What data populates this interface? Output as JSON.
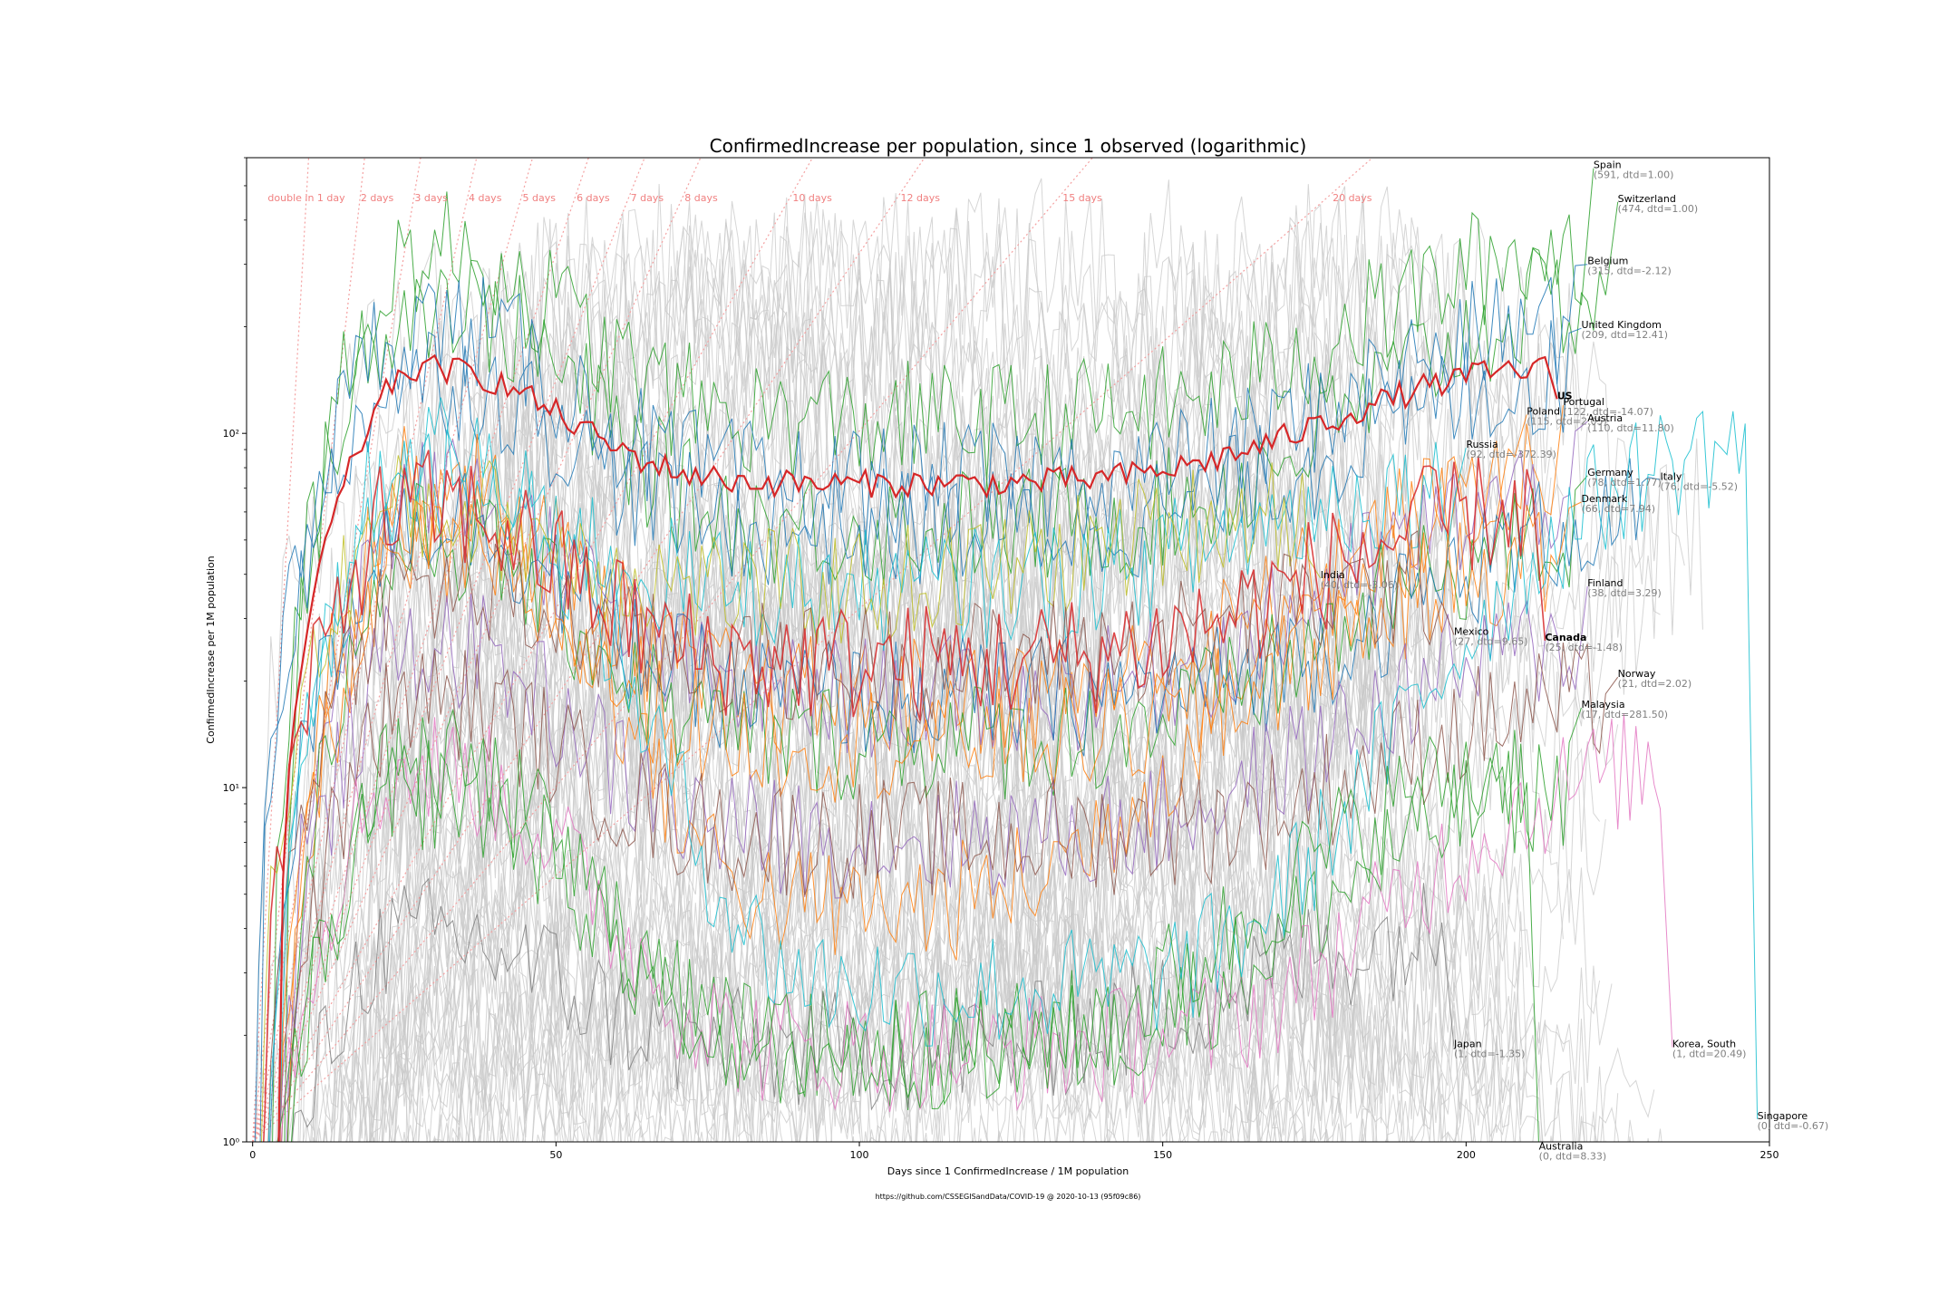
{
  "chart_data": {
    "type": "line",
    "title": "ConfirmedIncrease per population, since 1 observed (logarithmic)",
    "xlabel": "Days since 1 ConfirmedIncrease / 1M population",
    "ylabel": "ConfirmedIncrease per 1M population",
    "footer": "https://github.com/CSSEGISandData/COVID-19 @ 2020-10-13 (95f09c86)",
    "xlim": [
      -1,
      250
    ],
    "ylim": [
      1,
      600
    ],
    "yscale": "log",
    "x_ticks": [
      {
        "v": 0,
        "label": "0"
      },
      {
        "v": 50,
        "label": "50"
      },
      {
        "v": 100,
        "label": "100"
      },
      {
        "v": 150,
        "label": "150"
      },
      {
        "v": 200,
        "label": "200"
      },
      {
        "v": 250,
        "label": "250"
      }
    ],
    "y_ticks": [
      {
        "v": 1,
        "label": "10⁰"
      },
      {
        "v": 10,
        "label": "10¹"
      },
      {
        "v": 100,
        "label": "10²"
      }
    ],
    "doubling_lines": [
      {
        "days": 1,
        "label": "double in 1 day"
      },
      {
        "days": 2,
        "label": "2 days"
      },
      {
        "days": 3,
        "label": "3 days"
      },
      {
        "days": 4,
        "label": "4 days"
      },
      {
        "days": 5,
        "label": "5 days"
      },
      {
        "days": 6,
        "label": "6 days"
      },
      {
        "days": 7,
        "label": "7 days"
      },
      {
        "days": 8,
        "label": "8 days"
      },
      {
        "days": 10,
        "label": "10 days"
      },
      {
        "days": 12,
        "label": "12 days"
      },
      {
        "days": 15,
        "label": "15 days"
      },
      {
        "days": 20,
        "label": "20 days"
      }
    ],
    "highlighted": [
      {
        "name": "US",
        "label": "US",
        "value_text": "",
        "bold": true,
        "color": "#d62728",
        "width": 2.2,
        "lx": 215,
        "ly": 125,
        "base": 80,
        "peak": 200
      },
      {
        "name": "Canada",
        "label": "Canada",
        "value_text": "(25, dtd=-1.48)",
        "bold": true,
        "color": "#d62728",
        "width": 1.6,
        "lx": 213,
        "ly": 26,
        "base": 25,
        "peak": 90
      },
      {
        "name": "Spain",
        "label": "Spain",
        "value_text": "(591, dtd=1.00)",
        "bold": false,
        "color": "#2ca02c",
        "width": 1.0,
        "lx": 221,
        "ly": 560,
        "base": 120,
        "peak": 500
      },
      {
        "name": "Switzerland",
        "label": "Switzerland",
        "value_text": "(474, dtd=1.00)",
        "bold": false,
        "color": "#2ca02c",
        "width": 1.0,
        "lx": 225,
        "ly": 450,
        "base": 60,
        "peak": 400
      },
      {
        "name": "Belgium",
        "label": "Belgium",
        "value_text": "(315, dtd=-2.12)",
        "bold": false,
        "color": "#1f77b4",
        "width": 1.0,
        "lx": 220,
        "ly": 300,
        "base": 80,
        "peak": 300
      },
      {
        "name": "United Kingdom",
        "label": "United Kingdom",
        "value_text": "(209, dtd=12.41)",
        "bold": false,
        "color": "#1f77b4",
        "width": 1.0,
        "lx": 219,
        "ly": 198,
        "base": 60,
        "peak": 210
      },
      {
        "name": "Portugal",
        "label": "Portugal",
        "value_text": "(122, dtd=-14.07)",
        "bold": false,
        "color": "#ff7f0e",
        "width": 1.0,
        "lx": 216,
        "ly": 120,
        "base": 20,
        "peak": 120
      },
      {
        "name": "Poland",
        "label": "Poland",
        "value_text": "(115, dtd=2.05)",
        "bold": false,
        "color": "#ff7f0e",
        "width": 1.0,
        "lx": 210,
        "ly": 113,
        "base": 5,
        "peak": 115
      },
      {
        "name": "Austria",
        "label": "Austria",
        "value_text": "(110, dtd=11.80)",
        "bold": false,
        "color": "#9467bd",
        "width": 1.0,
        "lx": 220,
        "ly": 108,
        "base": 20,
        "peak": 110
      },
      {
        "name": "Russia",
        "label": "Russia",
        "value_text": "(92, dtd=-372.39)",
        "bold": false,
        "color": "#17becf",
        "width": 1.0,
        "lx": 200,
        "ly": 91,
        "base": 40,
        "peak": 90
      },
      {
        "name": "Germany",
        "label": "Germany",
        "value_text": "(78, dtd=1.77)",
        "bold": false,
        "color": "#2ca02c",
        "width": 1.0,
        "lx": 220,
        "ly": 76,
        "base": 15,
        "peak": 80
      },
      {
        "name": "Italy",
        "label": "Italy",
        "value_text": "(76, dtd=-5.52)",
        "bold": false,
        "color": "#1f77b4",
        "width": 1.0,
        "lx": 232,
        "ly": 74,
        "base": 20,
        "peak": 90
      },
      {
        "name": "Denmark",
        "label": "Denmark",
        "value_text": "(66, dtd=7.94)",
        "bold": false,
        "color": "#ff7f0e",
        "width": 1.0,
        "lx": 219,
        "ly": 64,
        "base": 15,
        "peak": 70
      },
      {
        "name": "India",
        "label": "India",
        "value_text": "(40, dtd=-3.06)",
        "bold": false,
        "color": "#bcbd22",
        "width": 1.0,
        "lx": 176,
        "ly": 39,
        "base": 40,
        "peak": 70
      },
      {
        "name": "Finland",
        "label": "Finland",
        "value_text": "(38, dtd=3.29)",
        "bold": false,
        "color": "#9467bd",
        "width": 1.0,
        "lx": 220,
        "ly": 37,
        "base": 8,
        "peak": 40
      },
      {
        "name": "Mexico",
        "label": "Mexico",
        "value_text": "(27, dtd=9.65)",
        "bold": false,
        "color": "#8c564b",
        "width": 1.0,
        "lx": 198,
        "ly": 27,
        "base": 25,
        "peak": 40
      },
      {
        "name": "Norway",
        "label": "Norway",
        "value_text": "(21, dtd=2.02)",
        "bold": false,
        "color": "#8c564b",
        "width": 1.0,
        "lx": 225,
        "ly": 20.5,
        "base": 8,
        "peak": 25
      },
      {
        "name": "Malaysia",
        "label": "Malaysia",
        "value_text": "(17, dtd=281.50)",
        "bold": false,
        "color": "#2ca02c",
        "width": 1.0,
        "lx": 219,
        "ly": 16.8,
        "base": 2,
        "peak": 17
      },
      {
        "name": "Japan",
        "label": "Japan",
        "value_text": "(1, dtd=-1.35)",
        "bold": false,
        "color": "#7f7f7f",
        "width": 1.0,
        "lx": 198,
        "ly": 1.85,
        "base": 2,
        "peak": 5
      },
      {
        "name": "Korea, South",
        "label": "Korea, South",
        "value_text": "(1, dtd=20.49)",
        "bold": false,
        "color": "#e377c2",
        "width": 1.0,
        "lx": 234,
        "ly": 1.85,
        "base": 2,
        "peak": 20
      },
      {
        "name": "Singapore",
        "label": "Singapore",
        "value_text": "(0, dtd=-0.67)",
        "bold": false,
        "color": "#17becf",
        "width": 1.0,
        "lx": 248,
        "ly": 1.16,
        "base": 3,
        "peak": 180
      },
      {
        "name": "Australia",
        "label": "Australia",
        "value_text": "(0, dtd=8.33)",
        "bold": false,
        "color": "#2ca02c",
        "width": 1.0,
        "lx": 212,
        "ly": 0.95,
        "base": 2,
        "peak": 20
      }
    ]
  }
}
